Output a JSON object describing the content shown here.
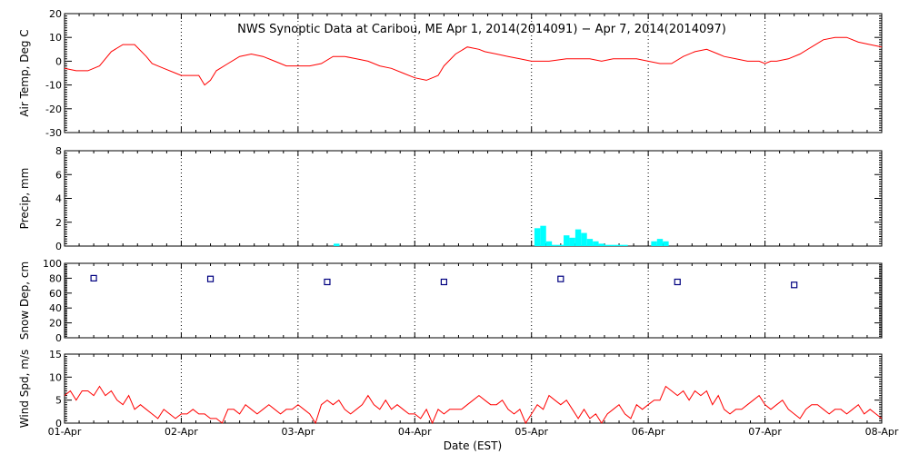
{
  "figure": {
    "title": "NWS Synoptic Data at Caribou, ME   Apr  1, 2014(2014091) − Apr  7, 2014(2014097)",
    "xlabel": "Date (EST)"
  },
  "colors": {
    "axis": "#000000",
    "temp_line": "#ff0000",
    "precip_bars": "#00ffff",
    "snow_markers": "#000080",
    "wind_line": "#ff0000"
  },
  "chart_data": [
    {
      "type": "line",
      "ylabel": "Air Temp, Deg C",
      "ylim": [
        -30,
        20
      ],
      "yticks": [
        -30,
        -20,
        -10,
        0,
        10,
        20
      ],
      "xlim": [
        0,
        7
      ],
      "x_tick_labels": [
        "01-Apr",
        "02-Apr",
        "03-Apr",
        "04-Apr",
        "05-Apr",
        "06-Apr",
        "07-Apr",
        "08-Apr"
      ],
      "grid": "vertical dotted at each day",
      "series": [
        {
          "x": [
            0,
            0.1,
            0.2,
            0.3,
            0.4,
            0.5,
            0.55,
            0.6,
            0.7,
            0.75,
            0.85,
            0.95,
            1.0,
            1.05,
            1.15,
            1.2,
            1.25,
            1.3,
            1.4,
            1.5,
            1.6,
            1.7,
            1.8,
            1.9,
            2.0,
            2.1,
            2.2,
            2.3,
            2.4,
            2.5,
            2.6,
            2.7,
            2.8,
            2.9,
            3.0,
            3.1,
            3.2,
            3.25,
            3.35,
            3.45,
            3.55,
            3.6,
            3.7,
            3.8,
            3.9,
            4.0,
            4.05,
            4.15,
            4.3,
            4.4,
            4.5,
            4.6,
            4.7,
            4.8,
            4.9,
            5.0,
            5.1,
            5.2,
            5.3,
            5.4,
            5.5,
            5.6,
            5.65,
            5.75,
            5.85,
            5.95,
            6.0,
            6.05,
            6.1,
            6.2,
            6.3,
            6.4,
            6.5,
            6.6,
            6.7,
            6.8,
            6.9,
            7.0
          ],
          "y": [
            -3,
            -4,
            -4,
            -2,
            4,
            7,
            7,
            7,
            2,
            -1,
            -3,
            -5,
            -6,
            -6,
            -6,
            -10,
            -8,
            -4,
            -1,
            2,
            3,
            2,
            0,
            -2,
            -2,
            -2,
            -1,
            2,
            2,
            1,
            0,
            -2,
            -3,
            -5,
            -7,
            -8,
            -6,
            -2,
            3,
            6,
            5,
            4,
            3,
            2,
            1,
            0,
            0,
            0,
            1,
            1,
            1,
            0,
            1,
            1,
            1,
            0,
            -1,
            -1,
            2,
            4,
            5,
            3,
            2,
            1,
            0,
            0,
            -1,
            0,
            0,
            1,
            3,
            6,
            9,
            10,
            10,
            8,
            7,
            6
          ]
        }
      ]
    },
    {
      "type": "bar",
      "ylabel": "Precip, mm",
      "ylim": [
        0,
        8
      ],
      "yticks": [
        0,
        2,
        4,
        6,
        8
      ],
      "xlim": [
        0,
        7
      ],
      "x_tick_labels": [
        "01-Apr",
        "02-Apr",
        "03-Apr",
        "04-Apr",
        "05-Apr",
        "06-Apr",
        "07-Apr",
        "08-Apr"
      ],
      "grid": "vertical dotted at each day",
      "series": [
        {
          "x": [
            2.33,
            4.05,
            4.1,
            4.15,
            4.2,
            4.25,
            4.3,
            4.35,
            4.4,
            4.45,
            4.5,
            4.55,
            4.6,
            4.65,
            4.7,
            4.75,
            4.8,
            5.05,
            5.1,
            5.15
          ],
          "y": [
            0.2,
            1.5,
            1.7,
            0.4,
            0.1,
            0.1,
            0.9,
            0.7,
            1.4,
            1.1,
            0.6,
            0.4,
            0.2,
            0.1,
            0.1,
            0.1,
            0.1,
            0.4,
            0.6,
            0.4
          ]
        }
      ]
    },
    {
      "type": "scatter",
      "ylabel": "Snow Dep, cm",
      "ylim": [
        0,
        100
      ],
      "yticks": [
        0,
        20,
        40,
        60,
        80,
        100
      ],
      "xlim": [
        0,
        7
      ],
      "x_tick_labels": [
        "01-Apr",
        "02-Apr",
        "03-Apr",
        "04-Apr",
        "05-Apr",
        "06-Apr",
        "07-Apr",
        "08-Apr"
      ],
      "grid": "vertical dotted at each day",
      "series": [
        {
          "x": [
            0.25,
            1.25,
            2.25,
            3.25,
            4.25,
            5.25,
            6.25
          ],
          "y": [
            80,
            79,
            75,
            75,
            79,
            75,
            71
          ]
        }
      ]
    },
    {
      "type": "line",
      "ylabel": "Wind Spd, m/s",
      "ylim": [
        0,
        15
      ],
      "yticks": [
        0,
        5,
        10,
        15
      ],
      "xlim": [
        0,
        7
      ],
      "x_tick_labels": [
        "01-Apr",
        "02-Apr",
        "03-Apr",
        "04-Apr",
        "05-Apr",
        "06-Apr",
        "07-Apr",
        "08-Apr"
      ],
      "grid": "vertical dotted at each day",
      "series": [
        {
          "x": [
            0,
            0.05,
            0.1,
            0.15,
            0.2,
            0.25,
            0.3,
            0.35,
            0.4,
            0.45,
            0.5,
            0.55,
            0.6,
            0.65,
            0.7,
            0.75,
            0.8,
            0.85,
            0.9,
            0.95,
            1.0,
            1.05,
            1.1,
            1.15,
            1.2,
            1.25,
            1.3,
            1.35,
            1.4,
            1.45,
            1.5,
            1.55,
            1.6,
            1.65,
            1.7,
            1.75,
            1.8,
            1.85,
            1.9,
            1.95,
            2.0,
            2.05,
            2.1,
            2.15,
            2.2,
            2.25,
            2.3,
            2.35,
            2.4,
            2.45,
            2.5,
            2.55,
            2.6,
            2.65,
            2.7,
            2.75,
            2.8,
            2.85,
            2.9,
            2.95,
            3.0,
            3.05,
            3.1,
            3.15,
            3.2,
            3.25,
            3.3,
            3.35,
            3.4,
            3.45,
            3.5,
            3.55,
            3.6,
            3.65,
            3.7,
            3.75,
            3.8,
            3.85,
            3.9,
            3.95,
            4.0,
            4.05,
            4.1,
            4.15,
            4.2,
            4.25,
            4.3,
            4.35,
            4.4,
            4.45,
            4.5,
            4.55,
            4.6,
            4.65,
            4.7,
            4.75,
            4.8,
            4.85,
            4.9,
            4.95,
            5.0,
            5.05,
            5.1,
            5.15,
            5.2,
            5.25,
            5.3,
            5.35,
            5.4,
            5.45,
            5.5,
            5.55,
            5.6,
            5.65,
            5.7,
            5.75,
            5.8,
            5.85,
            5.9,
            5.95,
            6.0,
            6.05,
            6.1,
            6.15,
            6.2,
            6.25,
            6.3,
            6.35,
            6.4,
            6.45,
            6.5,
            6.55,
            6.6,
            6.65,
            6.7,
            6.75,
            6.8,
            6.85,
            6.9,
            6.95,
            7.0
          ],
          "y": [
            6,
            7,
            5,
            7,
            7,
            6,
            8,
            6,
            7,
            5,
            4,
            6,
            3,
            4,
            3,
            2,
            1,
            3,
            2,
            1,
            2,
            2,
            3,
            2,
            2,
            1,
            1,
            0,
            3,
            3,
            2,
            4,
            3,
            2,
            3,
            4,
            3,
            2,
            3,
            3,
            4,
            3,
            2,
            0,
            4,
            5,
            4,
            5,
            3,
            2,
            3,
            4,
            6,
            4,
            3,
            5,
            3,
            4,
            3,
            2,
            2,
            1,
            3,
            0,
            3,
            2,
            3,
            3,
            3,
            4,
            5,
            6,
            5,
            4,
            4,
            5,
            3,
            2,
            3,
            0,
            2,
            4,
            3,
            6,
            5,
            4,
            5,
            3,
            1,
            3,
            1,
            2,
            0,
            2,
            3,
            4,
            2,
            1,
            4,
            3,
            4,
            5,
            5,
            8,
            7,
            6,
            7,
            5,
            7,
            6,
            7,
            4,
            6,
            3,
            2,
            3,
            3,
            4,
            5,
            6,
            4,
            3,
            4,
            5,
            3,
            2,
            1,
            3,
            4,
            4,
            3,
            2,
            3,
            3,
            2,
            3,
            4,
            2,
            3,
            2,
            1
          ]
        }
      ]
    }
  ]
}
